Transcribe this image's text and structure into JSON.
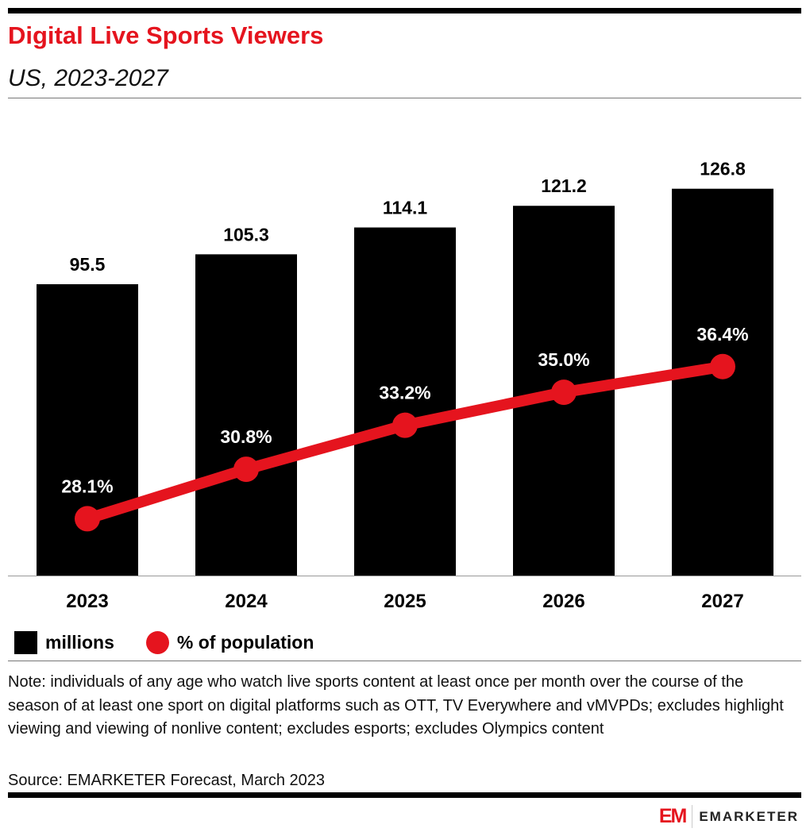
{
  "header": {
    "title": "Digital Live Sports Viewers",
    "subtitle": "US, 2023-2027"
  },
  "chart_data": {
    "type": "bar+line",
    "title": "Digital Live Sports Viewers",
    "subtitle": "US, 2023-2027",
    "categories": [
      "2023",
      "2024",
      "2025",
      "2026",
      "2027"
    ],
    "series": [
      {
        "name": "millions",
        "type": "bar",
        "values": [
          95.5,
          105.3,
          114.1,
          121.2,
          126.8
        ],
        "labels": [
          "95.5",
          "105.3",
          "114.1",
          "121.2",
          "126.8"
        ],
        "color": "#000000"
      },
      {
        "name": "% of population",
        "type": "line",
        "values": [
          28.1,
          30.8,
          33.2,
          35.0,
          36.4
        ],
        "labels": [
          "28.1%",
          "30.8%",
          "33.2%",
          "35.0%",
          "36.4%"
        ],
        "color": "#e5141e"
      }
    ],
    "ylim": [
      0,
      140
    ],
    "y2lim": [
      25,
      48.3
    ],
    "grid": false,
    "legend_position": "bottom-left"
  },
  "legend": {
    "bar": "millions",
    "line": "% of population"
  },
  "note": "Note: individuals of any age who watch live sports content at least once per month over the course of the season of at least one sport on digital platforms such as OTT, TV Everywhere and vMVPDs; excludes highlight viewing and viewing of nonlive content; excludes esports; excludes Olympics content",
  "source": "Source: EMARKETER Forecast, March 2023",
  "logo": {
    "mark": "EM",
    "text": "EMARKETER"
  }
}
